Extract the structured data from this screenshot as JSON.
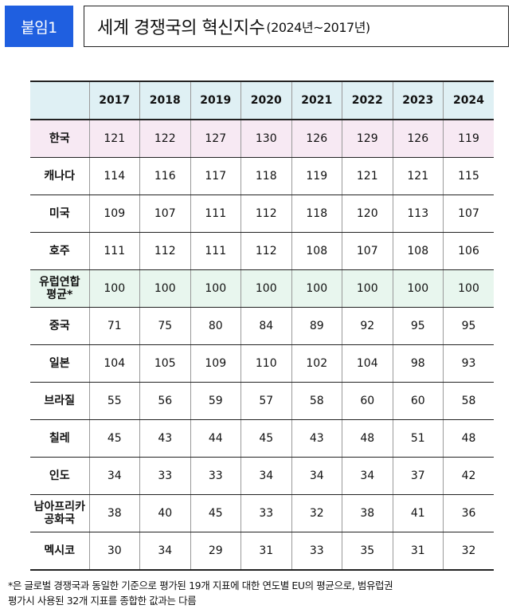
{
  "badge": "붙임1",
  "title": {
    "main": "세계 경쟁국의 혁신지수",
    "sub": "(2024년~2017년)"
  },
  "table": {
    "years": [
      "2017",
      "2018",
      "2019",
      "2020",
      "2021",
      "2022",
      "2023",
      "2024"
    ],
    "rows": [
      {
        "country": "한국",
        "values": [
          "121",
          "122",
          "127",
          "130",
          "126",
          "129",
          "126",
          "119"
        ],
        "highlight": "korea"
      },
      {
        "country": "캐나다",
        "values": [
          "114",
          "116",
          "117",
          "118",
          "119",
          "121",
          "121",
          "115"
        ]
      },
      {
        "country": "미국",
        "values": [
          "109",
          "107",
          "111",
          "112",
          "118",
          "120",
          "113",
          "107"
        ]
      },
      {
        "country": "호주",
        "values": [
          "111",
          "112",
          "111",
          "112",
          "108",
          "107",
          "108",
          "106"
        ]
      },
      {
        "country": "유럽연합\n평균*",
        "values": [
          "100",
          "100",
          "100",
          "100",
          "100",
          "100",
          "100",
          "100"
        ],
        "highlight": "eu"
      },
      {
        "country": "중국",
        "values": [
          "71",
          "75",
          "80",
          "84",
          "89",
          "92",
          "95",
          "95"
        ]
      },
      {
        "country": "일본",
        "values": [
          "104",
          "105",
          "109",
          "110",
          "102",
          "104",
          "98",
          "93"
        ]
      },
      {
        "country": "브라질",
        "values": [
          "55",
          "56",
          "59",
          "57",
          "58",
          "60",
          "60",
          "58"
        ]
      },
      {
        "country": "칠레",
        "values": [
          "45",
          "43",
          "44",
          "45",
          "43",
          "48",
          "51",
          "48"
        ]
      },
      {
        "country": "인도",
        "values": [
          "34",
          "33",
          "33",
          "34",
          "34",
          "34",
          "37",
          "42"
        ]
      },
      {
        "country": "남아프리카\n공화국",
        "values": [
          "38",
          "40",
          "45",
          "33",
          "32",
          "38",
          "41",
          "36"
        ]
      },
      {
        "country": "멕시코",
        "values": [
          "30",
          "34",
          "29",
          "31",
          "33",
          "35",
          "31",
          "32"
        ]
      }
    ]
  },
  "footnote": {
    "line1": "*은 글로벌 경쟁국과 동일한 기준으로 평가된 19개 지표에 대한 연도별 EU의 평균으로, 범유럽권",
    "line2": "평가시 사용된 32개 지표를 종합한 값과는 다름"
  }
}
